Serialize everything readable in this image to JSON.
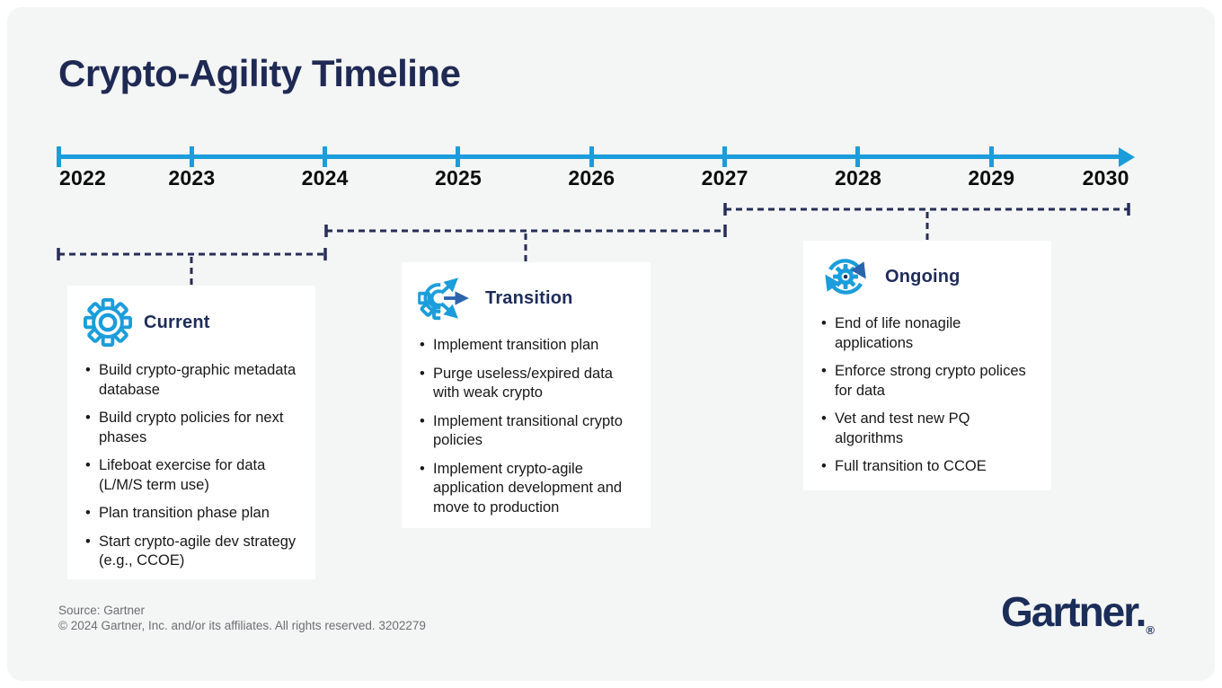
{
  "title": "Crypto-Agility Timeline",
  "colors": {
    "background": "#f4f5f5",
    "timeline_blue": "#1b9ddb",
    "navy": "#1f2a54",
    "bracket_navy": "#262f58",
    "heading_navy": "#1e2c5a",
    "body_text": "#181818",
    "footer_gray": "#6c7072",
    "accent_dark_blue": "#2a64ad",
    "card_background": "#ffffff"
  },
  "chart_data": {
    "type": "timeline",
    "title": "Crypto-Agility Timeline",
    "years": [
      "2022",
      "2023",
      "2024",
      "2025",
      "2026",
      "2027",
      "2028",
      "2029",
      "2030"
    ],
    "axis": {
      "start_year": 2022,
      "end_year": 2030,
      "arrow": "right",
      "color": "#1b9ddb"
    },
    "phases": [
      {
        "name": "Current",
        "icon": "gear-icon",
        "start_year": 2022,
        "end_year": 2024,
        "items": [
          "Build crypto-graphic metadata database",
          "Build crypto policies for next phases",
          "Lifeboat exercise for data (L/M/S term use)",
          "Plan transition phase plan",
          "Start crypto-agile dev strategy (e.g., CCOE)"
        ]
      },
      {
        "name": "Transition",
        "icon": "gear-arrows-icon",
        "start_year": 2024,
        "end_year": 2027,
        "items": [
          "Implement transition plan",
          "Purge useless/expired data with weak crypto",
          "Implement transitional crypto policies",
          "Implement crypto-agile application development and move to production"
        ]
      },
      {
        "name": "Ongoing",
        "icon": "gear-refresh-icon",
        "start_year": 2027,
        "end_year": 2030,
        "items": [
          "End of life nonagile applications",
          "Enforce strong crypto polices for data",
          "Vet and test new PQ algorithms",
          "Full transition to CCOE"
        ]
      }
    ]
  },
  "footer": {
    "source": "Source: Gartner",
    "copyright": "© 2024 Gartner, Inc. and/or its affiliates. All rights reserved. 3202279",
    "logo_text": "Gartner.",
    "registered_mark": "®"
  }
}
